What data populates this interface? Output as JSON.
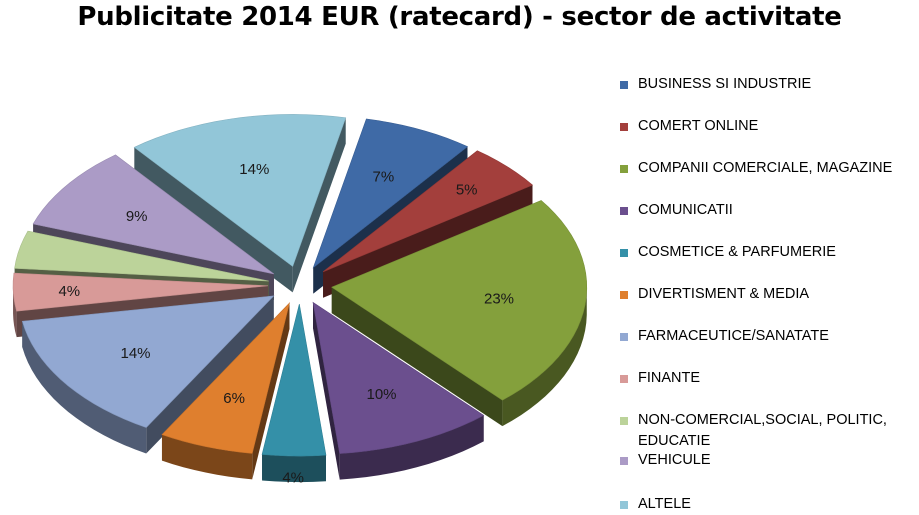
{
  "chart_data": {
    "type": "pie",
    "title": "Publicitate 2014 EUR (ratecard) - sector de activitate",
    "series": [
      {
        "name": "BUSINESS SI INDUSTRIE",
        "value": 7,
        "label": "7%",
        "color": "#3f6aa6"
      },
      {
        "name": "COMERT ONLINE",
        "value": 5,
        "label": "5%",
        "color": "#a33f3c"
      },
      {
        "name": "COMPANII COMERCIALE, MAGAZINE",
        "value": 23,
        "label": "23%",
        "color": "#84a03c"
      },
      {
        "name": "COMUNICATII",
        "value": 10,
        "label": "10%",
        "color": "#6b4f8e"
      },
      {
        "name": "COSMETICE & PARFUMERIE",
        "value": 4,
        "label": "4%",
        "color": "#3490a8"
      },
      {
        "name": "DIVERTISMENT & MEDIA",
        "value": 6,
        "label": "6%",
        "color": "#df7f2e"
      },
      {
        "name": "FARMACEUTICE/SANATATE",
        "value": 14,
        "label": "14%",
        "color": "#92a8d2"
      },
      {
        "name": "FINANTE",
        "value": 4,
        "label": "4%",
        "color": "#d89a98"
      },
      {
        "name": "NON-COMERCIAL,SOCIAL, POLITIC, EDUCATIE",
        "value": 4,
        "label": "4%",
        "color": "#bcd39a"
      },
      {
        "name": "VEHICULE",
        "value": 9,
        "label": "9%",
        "color": "#ab9bc6"
      },
      {
        "name": "ALTELE",
        "value": 14,
        "label": "14%",
        "color": "#92c6d8"
      }
    ],
    "legend_position": "right"
  }
}
